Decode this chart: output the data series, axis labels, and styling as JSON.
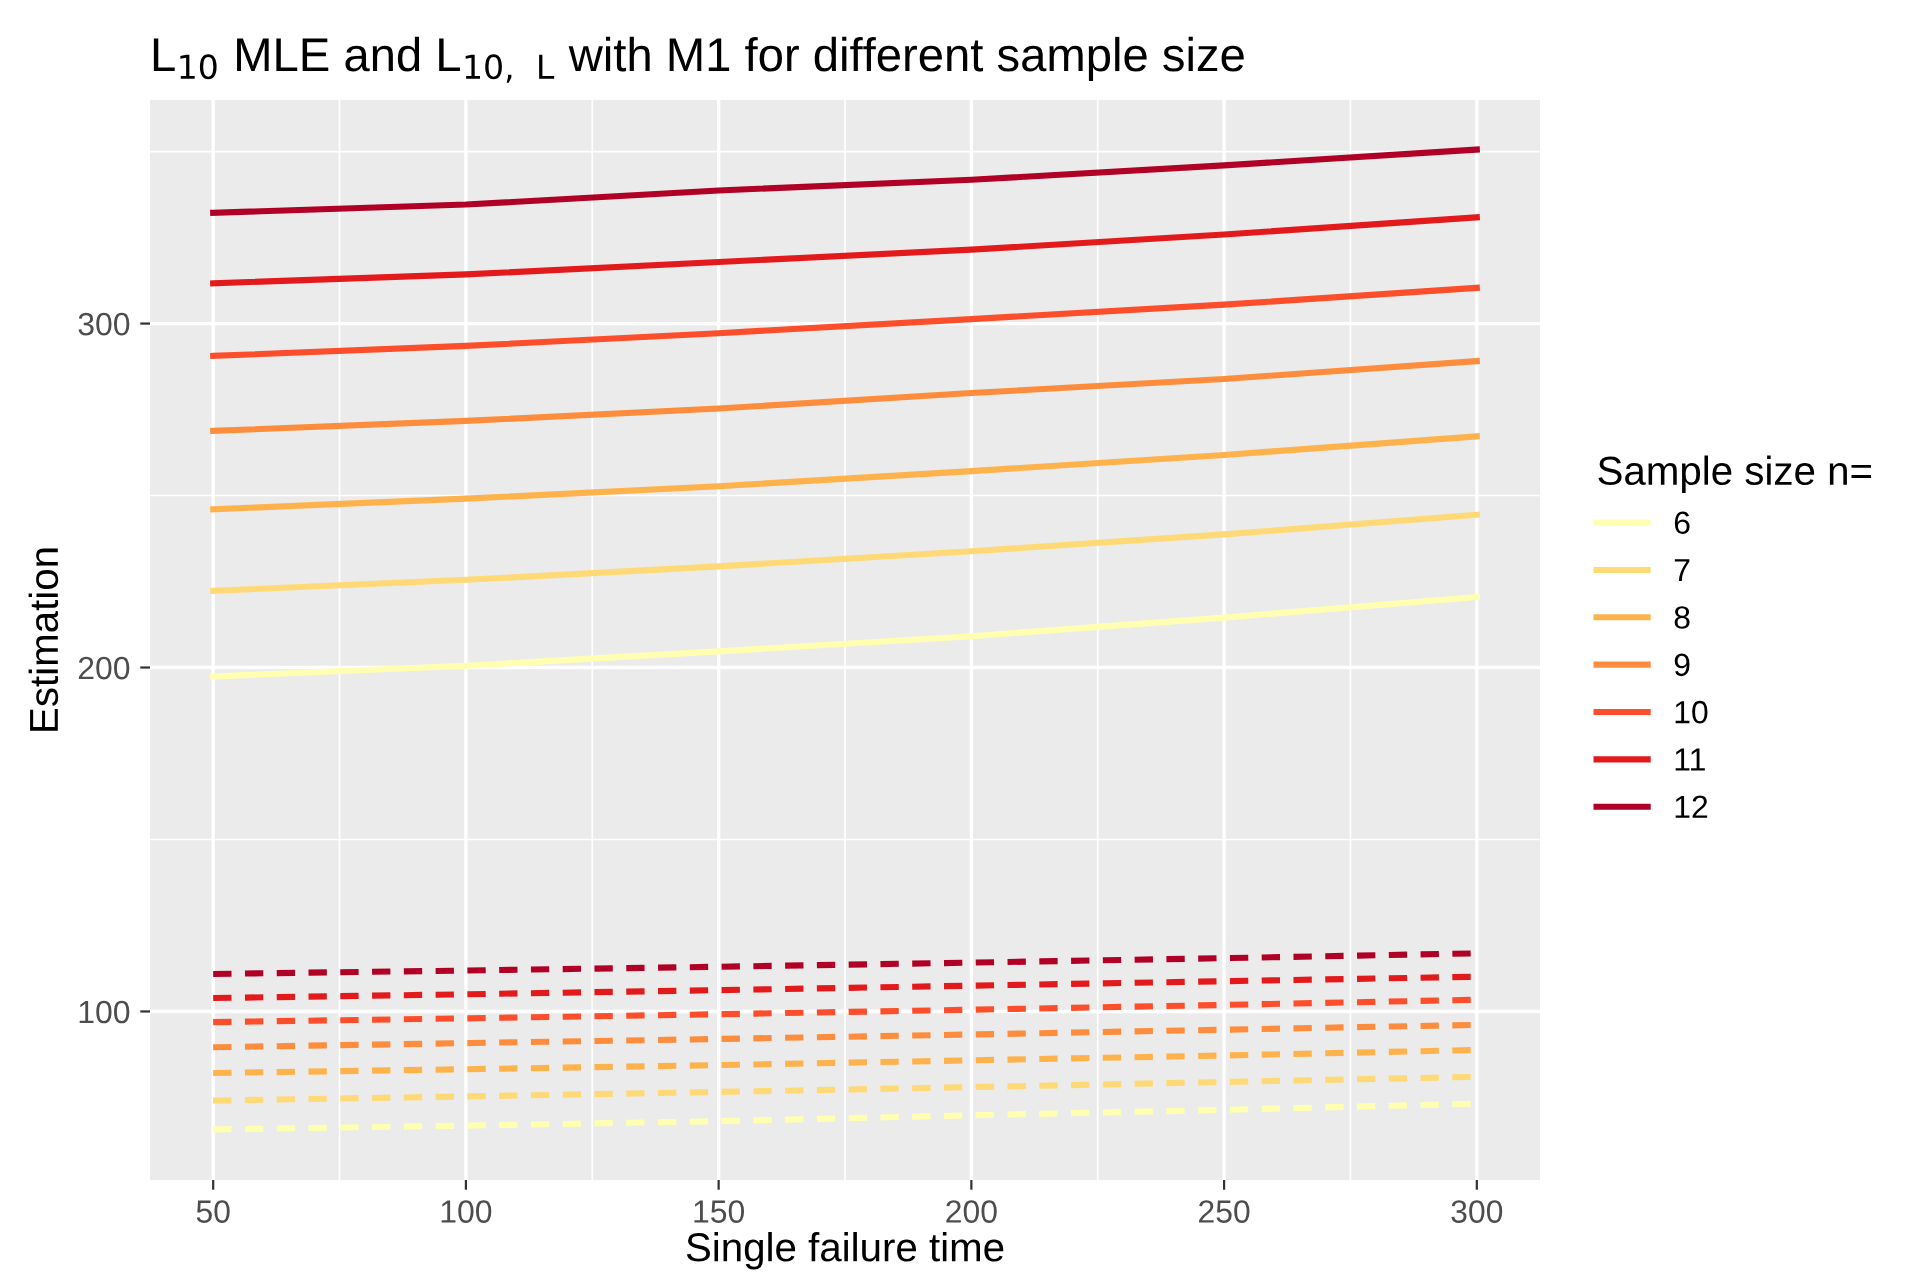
{
  "chart_data": {
    "type": "line",
    "title": "L$_{10}$ MLE and L$_{10, L}$ with M1 for different sample size",
    "xlabel": "Single failure time",
    "ylabel": "Estimation",
    "legend_title": "Sample size n=",
    "legend": "right",
    "grid": true,
    "marker": "none",
    "x": [
      50,
      100,
      150,
      200,
      250,
      300
    ],
    "xlim": [
      37.5,
      312.5
    ],
    "ylim": [
      51,
      365
    ],
    "xticks": [
      50,
      100,
      150,
      200,
      250,
      300
    ],
    "yticks": [
      100,
      200,
      300
    ],
    "series": [
      {
        "name": "6",
        "color": "#ffffb2",
        "line_style": "solid",
        "values": [
          197.4,
          200.5,
          204.7,
          209.1,
          214.5,
          220.5
        ]
      },
      {
        "name": "7",
        "color": "#fed976",
        "line_style": "solid",
        "values": [
          222.3,
          225.5,
          229.4,
          233.8,
          238.7,
          244.4
        ]
      },
      {
        "name": "8",
        "color": "#feb24c",
        "line_style": "solid",
        "values": [
          246.0,
          249.1,
          252.7,
          257.1,
          261.8,
          267.2
        ]
      },
      {
        "name": "9",
        "color": "#fd8d3c",
        "line_style": "solid",
        "values": [
          268.8,
          271.7,
          275.3,
          279.8,
          283.9,
          289.1
        ]
      },
      {
        "name": "10",
        "color": "#fc4e2a",
        "line_style": "solid",
        "values": [
          290.6,
          293.5,
          297.2,
          301.3,
          305.5,
          310.4
        ]
      },
      {
        "name": "11",
        "color": "#e31a1c",
        "line_style": "solid",
        "values": [
          311.7,
          314.3,
          317.9,
          321.5,
          325.9,
          330.9
        ]
      },
      {
        "name": "12",
        "color": "#b10026",
        "line_style": "solid",
        "values": [
          332.2,
          334.6,
          338.7,
          341.8,
          346.0,
          350.6
        ]
      },
      {
        "color": "#ffffb2",
        "line_style": "dashed",
        "values": [
          65.7,
          66.8,
          68.1,
          69.8,
          71.4,
          73.2
        ]
      },
      {
        "color": "#fed976",
        "line_style": "dashed",
        "values": [
          74.1,
          75.3,
          76.6,
          78.0,
          79.5,
          81.0
        ]
      },
      {
        "color": "#feb24c",
        "line_style": "dashed",
        "values": [
          82.1,
          83.2,
          84.4,
          85.8,
          87.2,
          88.8
        ]
      },
      {
        "color": "#fd8d3c",
        "line_style": "dashed",
        "values": [
          89.6,
          90.8,
          92.0,
          93.3,
          94.7,
          96.1
        ]
      },
      {
        "color": "#fc4e2a",
        "line_style": "dashed",
        "values": [
          96.9,
          98.0,
          99.2,
          100.5,
          101.9,
          103.4
        ]
      },
      {
        "color": "#e31a1c",
        "line_style": "dashed",
        "values": [
          103.9,
          105.0,
          106.2,
          107.5,
          108.8,
          110.1
        ]
      },
      {
        "color": "#b10026",
        "line_style": "dashed",
        "values": [
          110.9,
          111.9,
          113.0,
          114.2,
          115.5,
          116.9
        ]
      }
    ]
  }
}
